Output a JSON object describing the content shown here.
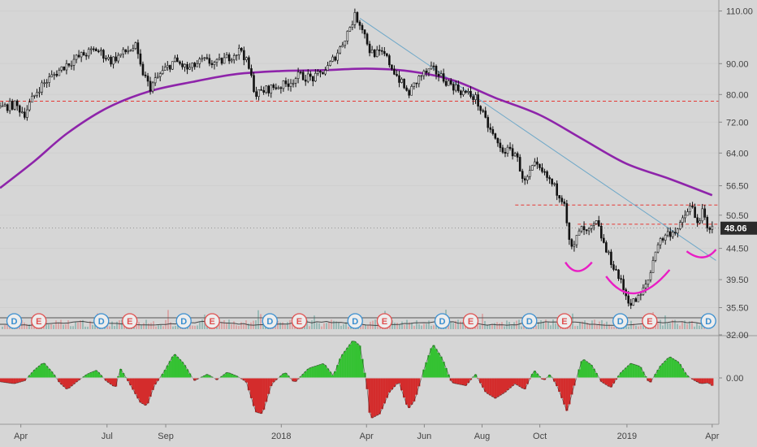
{
  "chart_data": [
    {
      "type": "candlestick",
      "title": "",
      "price_axis": {
        "ticks": [
          110.0,
          90.0,
          80.0,
          72.0,
          64.0,
          56.5,
          50.5,
          44.5,
          39.5,
          35.5,
          32.0
        ],
        "tick_labels": [
          "110.00",
          "90.00",
          "80.00",
          "72.00",
          "64.00",
          "56.50",
          "50.50",
          "44.50",
          "39.50",
          "35.50",
          "32.00"
        ],
        "scale": "log",
        "range": [
          32.0,
          114.0
        ]
      },
      "last_price": {
        "value": 48.06,
        "label": "48.06"
      },
      "x_axis": {
        "labels": [
          "Apr",
          "Jul",
          "Sep",
          "2018",
          "Apr",
          "Jun",
          "Aug",
          "Oct",
          "2019",
          "Apr"
        ],
        "dates": [
          "2017-04-01",
          "2017-07-01",
          "2017-09-01",
          "2018-01-01",
          "2018-04-01",
          "2018-06-01",
          "2018-08-01",
          "2018-10-01",
          "2019-01-01",
          "2019-04-01"
        ],
        "range": [
          "2017-03-10",
          "2019-04-08"
        ]
      },
      "price_path": [
        [
          "2017-03-10",
          76.0
        ],
        [
          "2017-03-25",
          77.0
        ],
        [
          "2017-04-05",
          74.5
        ],
        [
          "2017-04-20",
          82.0
        ],
        [
          "2017-05-05",
          86.0
        ],
        [
          "2017-05-20",
          90.0
        ],
        [
          "2017-06-05",
          93.0
        ],
        [
          "2017-06-20",
          95.0
        ],
        [
          "2017-07-05",
          91.0
        ],
        [
          "2017-07-20",
          94.0
        ],
        [
          "2017-07-31",
          96.0
        ],
        [
          "2017-08-05",
          89.0
        ],
        [
          "2017-08-15",
          82.0
        ],
        [
          "2017-08-25",
          86.0
        ],
        [
          "2017-09-10",
          91.0
        ],
        [
          "2017-09-25",
          88.0
        ],
        [
          "2017-10-10",
          91.0
        ],
        [
          "2017-10-25",
          90.0
        ],
        [
          "2017-11-10",
          93.0
        ],
        [
          "2017-11-20",
          95.0
        ],
        [
          "2017-11-27",
          89.0
        ],
        [
          "2017-12-05",
          80.0
        ],
        [
          "2017-12-20",
          82.0
        ],
        [
          "2018-01-05",
          83.0
        ],
        [
          "2018-01-20",
          86.0
        ],
        [
          "2018-02-05",
          85.0
        ],
        [
          "2018-02-20",
          89.0
        ],
        [
          "2018-03-05",
          96.0
        ],
        [
          "2018-03-20",
          108.0
        ],
        [
          "2018-03-27",
          104.0
        ],
        [
          "2018-04-05",
          94.0
        ],
        [
          "2018-04-20",
          93.0
        ],
        [
          "2018-05-01",
          87.0
        ],
        [
          "2018-05-15",
          80.0
        ],
        [
          "2018-05-28",
          86.0
        ],
        [
          "2018-06-10",
          88.0
        ],
        [
          "2018-06-25",
          84.0
        ],
        [
          "2018-07-10",
          81.0
        ],
        [
          "2018-07-25",
          79.0
        ],
        [
          "2018-08-05",
          72.0
        ],
        [
          "2018-08-20",
          65.0
        ],
        [
          "2018-09-05",
          64.0
        ],
        [
          "2018-09-15",
          57.0
        ],
        [
          "2018-09-25",
          61.0
        ],
        [
          "2018-10-10",
          58.0
        ],
        [
          "2018-10-20",
          55.0
        ],
        [
          "2018-10-27",
          53.5
        ],
        [
          "2018-11-01",
          45.5
        ],
        [
          "2018-11-05",
          44.0
        ],
        [
          "2018-11-12",
          48.0
        ],
        [
          "2018-11-20",
          47.0
        ],
        [
          "2018-11-30",
          49.0
        ],
        [
          "2018-12-10",
          44.0
        ],
        [
          "2018-12-20",
          41.0
        ],
        [
          "2018-12-30",
          37.5
        ],
        [
          "2019-01-05",
          36.0
        ],
        [
          "2019-01-15",
          37.0
        ],
        [
          "2019-01-25",
          40.0
        ],
        [
          "2019-02-01",
          45.0
        ],
        [
          "2019-02-12",
          47.0
        ],
        [
          "2019-02-25",
          48.0
        ],
        [
          "2019-03-05",
          51.0
        ],
        [
          "2019-03-10",
          52.5
        ],
        [
          "2019-03-15",
          49.0
        ],
        [
          "2019-03-22",
          51.0
        ],
        [
          "2019-03-28",
          47.0
        ],
        [
          "2019-04-01",
          48.06
        ]
      ],
      "moving_average": {
        "color": "#8e24aa",
        "points": [
          [
            "2017-03-10",
            56.0
          ],
          [
            "2017-04-15",
            62.0
          ],
          [
            "2017-05-20",
            69.0
          ],
          [
            "2017-07-01",
            76.0
          ],
          [
            "2017-08-15",
            81.0
          ],
          [
            "2017-09-30",
            84.0
          ],
          [
            "2017-11-15",
            86.5
          ],
          [
            "2017-12-31",
            87.5
          ],
          [
            "2018-02-15",
            87.8
          ],
          [
            "2018-04-01",
            88.3
          ],
          [
            "2018-05-15",
            87.5
          ],
          [
            "2018-07-01",
            84.5
          ],
          [
            "2018-08-15",
            79.0
          ],
          [
            "2018-10-01",
            74.0
          ],
          [
            "2018-11-15",
            67.5
          ],
          [
            "2018-12-31",
            61.5
          ],
          [
            "2019-02-15",
            58.0
          ],
          [
            "2019-04-01",
            54.5
          ]
        ]
      },
      "horizontal_levels": {
        "color": "#e53935",
        "lines": [
          {
            "price": 78.0,
            "from": "2017-03-10",
            "to": "2019-04-08"
          },
          {
            "price": 52.5,
            "from": "2018-09-05",
            "to": "2019-04-08"
          },
          {
            "price": 48.8,
            "from": "2018-11-10",
            "to": "2019-04-08"
          }
        ]
      },
      "trendline": {
        "color": "#6fa8c8",
        "from": [
          "2018-03-25",
          107.0
        ],
        "to": [
          "2019-04-05",
          42.5
        ]
      },
      "arcs": {
        "color": "#e91ec4",
        "items": [
          {
            "from": [
              "2018-10-28",
              42.2
            ],
            "mid": [
              "2018-11-10",
              40.8
            ],
            "to": [
              "2018-11-25",
              42.2
            ]
          },
          {
            "from": [
              "2018-12-10",
              40.0
            ],
            "mid": [
              "2019-01-10",
              37.5
            ],
            "to": [
              "2019-02-15",
              41.0
            ]
          },
          {
            "from": [
              "2019-03-05",
              44.0
            ],
            "mid": [
              "2019-03-22",
              43.0
            ],
            "to": [
              "2019-04-05",
              44.3
            ]
          }
        ]
      },
      "events": [
        {
          "label": "D",
          "date": "2017-03-25"
        },
        {
          "label": "E",
          "date": "2017-04-20"
        },
        {
          "label": "D",
          "date": "2017-06-25"
        },
        {
          "label": "E",
          "date": "2017-07-25"
        },
        {
          "label": "D",
          "date": "2017-09-20"
        },
        {
          "label": "E",
          "date": "2017-10-20"
        },
        {
          "label": "D",
          "date": "2017-12-20"
        },
        {
          "label": "E",
          "date": "2018-01-20"
        },
        {
          "label": "D",
          "date": "2018-03-20"
        },
        {
          "label": "E",
          "date": "2018-04-20"
        },
        {
          "label": "D",
          "date": "2018-06-20"
        },
        {
          "label": "E",
          "date": "2018-07-20"
        },
        {
          "label": "D",
          "date": "2018-09-20"
        },
        {
          "label": "E",
          "date": "2018-10-27"
        },
        {
          "label": "D",
          "date": "2018-12-25"
        },
        {
          "label": "E",
          "date": "2019-01-25"
        },
        {
          "label": "D",
          "date": "2019-03-28"
        }
      ],
      "event_colors": {
        "D": "#3a8fd0",
        "E": "#e05050"
      }
    },
    {
      "type": "area",
      "title": "",
      "y_axis": {
        "ticks": [
          0.0
        ],
        "tick_labels": [
          "0.00"
        ]
      },
      "positive_color": "#35c233",
      "negative_color": "#d42c2c",
      "points": [
        [
          "2017-03-10",
          -0.4
        ],
        [
          "2017-03-25",
          -0.6
        ],
        [
          "2017-04-05",
          -0.3
        ],
        [
          "2017-04-15",
          0.8
        ],
        [
          "2017-04-25",
          1.6
        ],
        [
          "2017-05-05",
          0.5
        ],
        [
          "2017-05-12",
          -0.5
        ],
        [
          "2017-05-20",
          -1.2
        ],
        [
          "2017-05-30",
          -0.4
        ],
        [
          "2017-06-10",
          0.4
        ],
        [
          "2017-06-20",
          0.8
        ],
        [
          "2017-06-30",
          -0.3
        ],
        [
          "2017-07-10",
          -1.0
        ],
        [
          "2017-07-15",
          1.0
        ],
        [
          "2017-07-25",
          -0.6
        ],
        [
          "2017-08-05",
          -2.5
        ],
        [
          "2017-08-12",
          -2.9
        ],
        [
          "2017-08-20",
          -0.8
        ],
        [
          "2017-08-30",
          0.6
        ],
        [
          "2017-09-10",
          2.5
        ],
        [
          "2017-09-20",
          1.5
        ],
        [
          "2017-10-01",
          -0.3
        ],
        [
          "2017-10-15",
          0.4
        ],
        [
          "2017-10-25",
          -0.2
        ],
        [
          "2017-11-05",
          0.6
        ],
        [
          "2017-11-15",
          0.2
        ],
        [
          "2017-11-25",
          -0.4
        ],
        [
          "2017-12-05",
          -3.5
        ],
        [
          "2017-12-12",
          -3.7
        ],
        [
          "2017-12-22",
          -0.6
        ],
        [
          "2018-01-05",
          0.6
        ],
        [
          "2018-01-15",
          -0.5
        ],
        [
          "2018-01-30",
          1.0
        ],
        [
          "2018-02-15",
          1.5
        ],
        [
          "2018-02-25",
          0.2
        ],
        [
          "2018-03-05",
          2.2
        ],
        [
          "2018-03-18",
          3.9
        ],
        [
          "2018-03-25",
          3.3
        ],
        [
          "2018-04-01",
          -0.5
        ],
        [
          "2018-04-05",
          -4.2
        ],
        [
          "2018-04-15",
          -3.7
        ],
        [
          "2018-04-25",
          -1.5
        ],
        [
          "2018-05-05",
          -0.4
        ],
        [
          "2018-05-15",
          -3.2
        ],
        [
          "2018-05-22",
          -2.3
        ],
        [
          "2018-06-01",
          1.0
        ],
        [
          "2018-06-10",
          3.5
        ],
        [
          "2018-06-20",
          2.0
        ],
        [
          "2018-06-30",
          -0.5
        ],
        [
          "2018-07-15",
          -0.8
        ],
        [
          "2018-07-25",
          0.4
        ],
        [
          "2018-08-05",
          -1.5
        ],
        [
          "2018-08-15",
          -2.1
        ],
        [
          "2018-08-25",
          -1.5
        ],
        [
          "2018-09-05",
          -0.6
        ],
        [
          "2018-09-15",
          -1.2
        ],
        [
          "2018-09-25",
          0.8
        ],
        [
          "2018-10-05",
          -0.3
        ],
        [
          "2018-10-12",
          0.4
        ],
        [
          "2018-10-20",
          -1.0
        ],
        [
          "2018-10-30",
          -3.5
        ],
        [
          "2018-11-05",
          -1.2
        ],
        [
          "2018-11-15",
          2.0
        ],
        [
          "2018-11-25",
          1.3
        ],
        [
          "2018-12-05",
          -0.4
        ],
        [
          "2018-12-15",
          -1.0
        ],
        [
          "2018-12-25",
          0.5
        ],
        [
          "2019-01-05",
          1.5
        ],
        [
          "2019-01-15",
          1.2
        ],
        [
          "2019-01-25",
          -0.6
        ],
        [
          "2019-02-05",
          1.2
        ],
        [
          "2019-02-15",
          2.2
        ],
        [
          "2019-02-25",
          1.6
        ],
        [
          "2019-03-05",
          0.3
        ],
        [
          "2019-03-12",
          -0.2
        ],
        [
          "2019-03-20",
          -0.6
        ],
        [
          "2019-03-28",
          -0.5
        ],
        [
          "2019-04-01",
          -0.8
        ]
      ]
    }
  ]
}
